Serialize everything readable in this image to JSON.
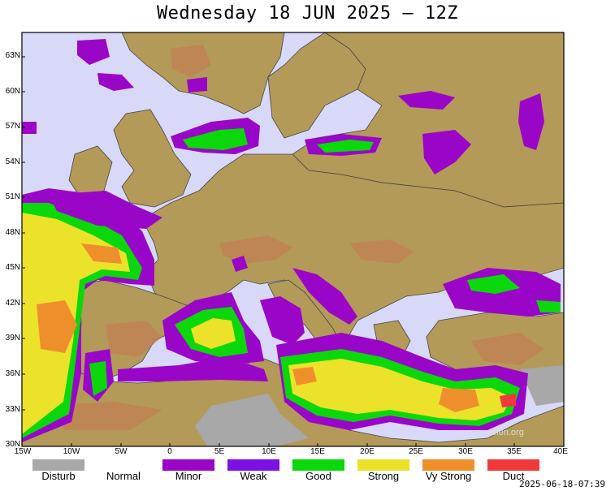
{
  "title": "Wednesday 18 JUN 2025 – 12Z",
  "timestamp": "2025-06-18-07:39",
  "credit": "tolen.org",
  "lat_labels": [
    "63N",
    "60N",
    "57N",
    "54N",
    "51N",
    "48N",
    "45N",
    "42N",
    "39N",
    "36N",
    "33N",
    "30N"
  ],
  "lon_labels": [
    "15W",
    "10W",
    "5W",
    "0",
    "5E",
    "10E",
    "15E",
    "20E",
    "25E",
    "30E",
    "35E",
    "40E"
  ],
  "legend": [
    {
      "label": "Disturb",
      "color": "#a8a8a8"
    },
    {
      "label": "Normal",
      "color": "#ffffff"
    },
    {
      "label": "Minor",
      "color": "#9a06c8"
    },
    {
      "label": "Weak",
      "color": "#7d10e4"
    },
    {
      "label": "Good",
      "color": "#0ad80a"
    },
    {
      "label": "Strong",
      "color": "#ece22a"
    },
    {
      "label": "Vy Strong",
      "color": "#ef8f2c"
    },
    {
      "label": "Duct",
      "color": "#f03a3a"
    }
  ],
  "colors": {
    "sea": "#d8d8f8",
    "land": "#b49a58",
    "land_relief": "#c57a52",
    "minor": "#9a06c8",
    "weak": "#7d10e4",
    "good": "#0ad80a",
    "strong": "#ece22a",
    "very_strong": "#ef8f2c",
    "duct": "#f03a3a",
    "disturb": "#a8a8a8"
  }
}
